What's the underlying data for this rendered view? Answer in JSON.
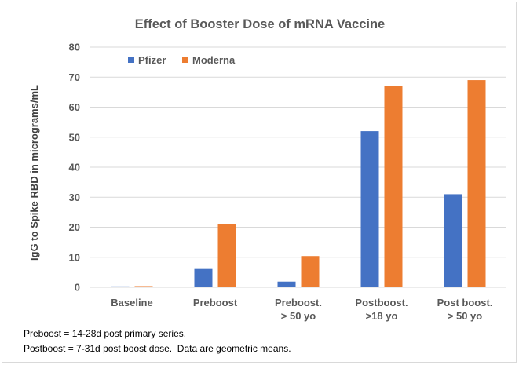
{
  "chart_data": {
    "type": "bar",
    "title": "Effect of Booster Dose of mRNA Vaccine",
    "ylabel": "IgG to Spike RBD in micrograms/mL",
    "xlabel": "",
    "ylim": [
      0,
      80
    ],
    "yticks": [
      0,
      10,
      20,
      30,
      40,
      50,
      60,
      70,
      80
    ],
    "grid": true,
    "legend_position": "top-left",
    "categories": [
      [
        "Baseline"
      ],
      [
        "Preboost"
      ],
      [
        "Preboost.",
        "> 50 yo"
      ],
      [
        "Postboost.",
        ">18 yo"
      ],
      [
        "Post boost.",
        "> 50 yo"
      ]
    ],
    "series": [
      {
        "name": "Pfizer",
        "color": "#4472c4",
        "values": [
          0.3,
          6.1,
          1.9,
          52,
          31
        ]
      },
      {
        "name": "Moderna",
        "color": "#ed7d31",
        "values": [
          0.4,
          21,
          10.4,
          67,
          69
        ]
      }
    ]
  },
  "footnotes": {
    "line1": "Preboost = 14-28d post primary series.",
    "line2": "Postboost = 7-31d post boost dose.  Data are geometric means."
  }
}
